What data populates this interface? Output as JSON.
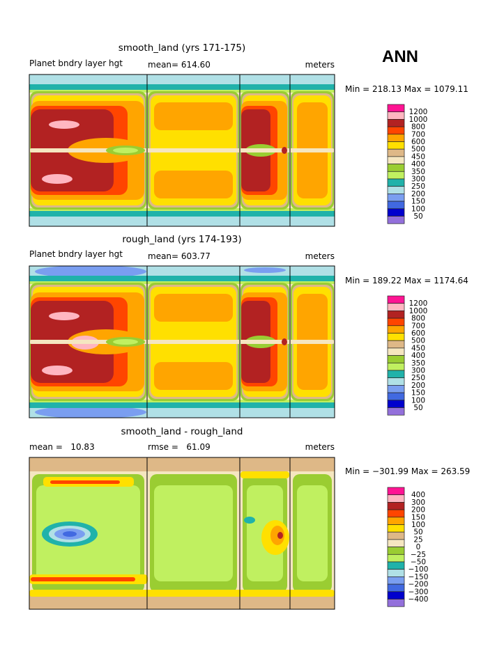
{
  "season": "ANN",
  "colors": {
    "c1": "#ff1493",
    "c2": "#ffb6c1",
    "c3": "#b22222",
    "c4": "#ff4500",
    "c5": "#ffa500",
    "c6": "#ffe000",
    "c7": "#deb887",
    "c8": "#f5e6c0",
    "c9": "#9acd32",
    "c10": "#c0f060",
    "c11": "#20b2aa",
    "c12": "#b0e0e6",
    "c13": "#7a9ef0",
    "c14": "#4169e1",
    "c15": "#0000cd",
    "c16": "#9370db"
  },
  "chart_data": [
    {
      "type": "heatmap",
      "title": "smooth_land (yrs 171-175)",
      "variable": "Planet bndry layer hgt",
      "stat_label": "mean=",
      "stat_value": "614.60",
      "units": "meters",
      "minmax": "Min = 218.13 Max = 1079.11",
      "min": 218.13,
      "max": 1079.11,
      "levels": [
        "1200",
        "1000",
        "800",
        "700",
        "600",
        "500",
        "450",
        "400",
        "350",
        "300",
        "250",
        "200",
        "150",
        "100",
        "50"
      ]
    },
    {
      "type": "heatmap",
      "title": "rough_land (yrs 174-193)",
      "variable": "Planet bndry layer hgt",
      "stat_label": "mean=",
      "stat_value": "603.77",
      "units": "meters",
      "minmax": "Min = 189.22 Max = 1174.64",
      "min": 189.22,
      "max": 1174.64,
      "levels": [
        "1200",
        "1000",
        "800",
        "700",
        "600",
        "500",
        "450",
        "400",
        "350",
        "300",
        "250",
        "200",
        "150",
        "100",
        "50"
      ]
    },
    {
      "type": "heatmap",
      "title": "smooth_land - rough_land",
      "variable": "mean =   10.83",
      "stat_label": "rmse =",
      "stat_value": "61.09",
      "units": "meters",
      "minmax": "Min = −301.99 Max = 263.59",
      "min": -301.99,
      "max": 263.59,
      "levels": [
        "400",
        "300",
        "200",
        "150",
        "100",
        "50",
        "25",
        "0",
        "−25",
        "−50",
        "−100",
        "−150",
        "−200",
        "−300",
        "−400"
      ]
    }
  ]
}
